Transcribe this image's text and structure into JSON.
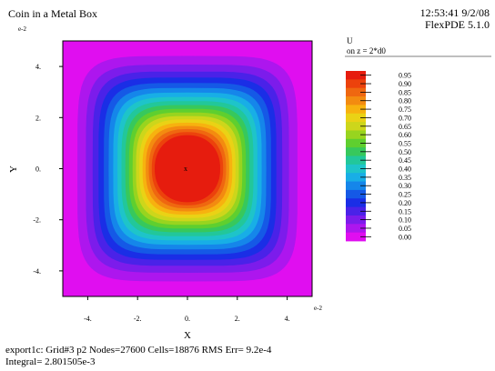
{
  "header": {
    "title": "Coin in a Metal Box",
    "time_date": "12:53:41 9/2/08",
    "software": "FlexPDE 5.1.0"
  },
  "footer": {
    "line1": "export1c:  Grid#3  p2  Nodes=27600 Cells=18876 RMS Err= 9.2e-4",
    "line2": "Integral=  2.801505e-3"
  },
  "chart_data": {
    "type": "heatmap",
    "title": "Coin in a Metal Box",
    "xlabel": "X",
    "ylabel": "Y",
    "xlim": [
      -5,
      5
    ],
    "ylim": [
      -5,
      5
    ],
    "x_exponent_label": "e-2",
    "y_exponent_label": "e-2",
    "x_ticks": [
      "-4.",
      "-2.",
      "0.",
      "2.",
      "4."
    ],
    "y_ticks": [
      "4.",
      "2.",
      "0.",
      "-2.",
      "-4."
    ],
    "x_tick_values": [
      -4,
      -2,
      0,
      2,
      4
    ],
    "y_tick_values": [
      4,
      2,
      0,
      -2,
      -4
    ],
    "center_marker": "x",
    "center": [
      0,
      0
    ],
    "legend_title_line1": "U",
    "legend_title_line2": "on z = 2*d0",
    "levels": [
      {
        "label": "0.95",
        "value": 0.95,
        "color": "#e61c0e"
      },
      {
        "label": "0.90",
        "value": 0.9,
        "color": "#ec420c"
      },
      {
        "label": "0.85",
        "value": 0.85,
        "color": "#ef6710"
      },
      {
        "label": "0.80",
        "value": 0.8,
        "color": "#f38b10"
      },
      {
        "label": "0.75",
        "value": 0.75,
        "color": "#f7b20f"
      },
      {
        "label": "0.70",
        "value": 0.7,
        "color": "#ead215"
      },
      {
        "label": "0.65",
        "value": 0.65,
        "color": "#cdd61b"
      },
      {
        "label": "0.60",
        "value": 0.6,
        "color": "#98d41f"
      },
      {
        "label": "0.55",
        "value": 0.55,
        "color": "#5fcf2f"
      },
      {
        "label": "0.50",
        "value": 0.5,
        "color": "#37c85c"
      },
      {
        "label": "0.45",
        "value": 0.45,
        "color": "#22c79a"
      },
      {
        "label": "0.40",
        "value": 0.4,
        "color": "#1ec4c9"
      },
      {
        "label": "0.35",
        "value": 0.35,
        "color": "#18aee6"
      },
      {
        "label": "0.30",
        "value": 0.3,
        "color": "#1586ea"
      },
      {
        "label": "0.25",
        "value": 0.25,
        "color": "#1559e6"
      },
      {
        "label": "0.20",
        "value": 0.2,
        "color": "#1a2ee6"
      },
      {
        "label": "0.15",
        "value": 0.15,
        "color": "#4a22e8"
      },
      {
        "label": "0.10",
        "value": 0.1,
        "color": "#7c1ceb"
      },
      {
        "label": "0.05",
        "value": 0.05,
        "color": "#ad16ee"
      },
      {
        "label": "0.00",
        "value": 0.0,
        "color": "#e00ef0"
      }
    ]
  }
}
